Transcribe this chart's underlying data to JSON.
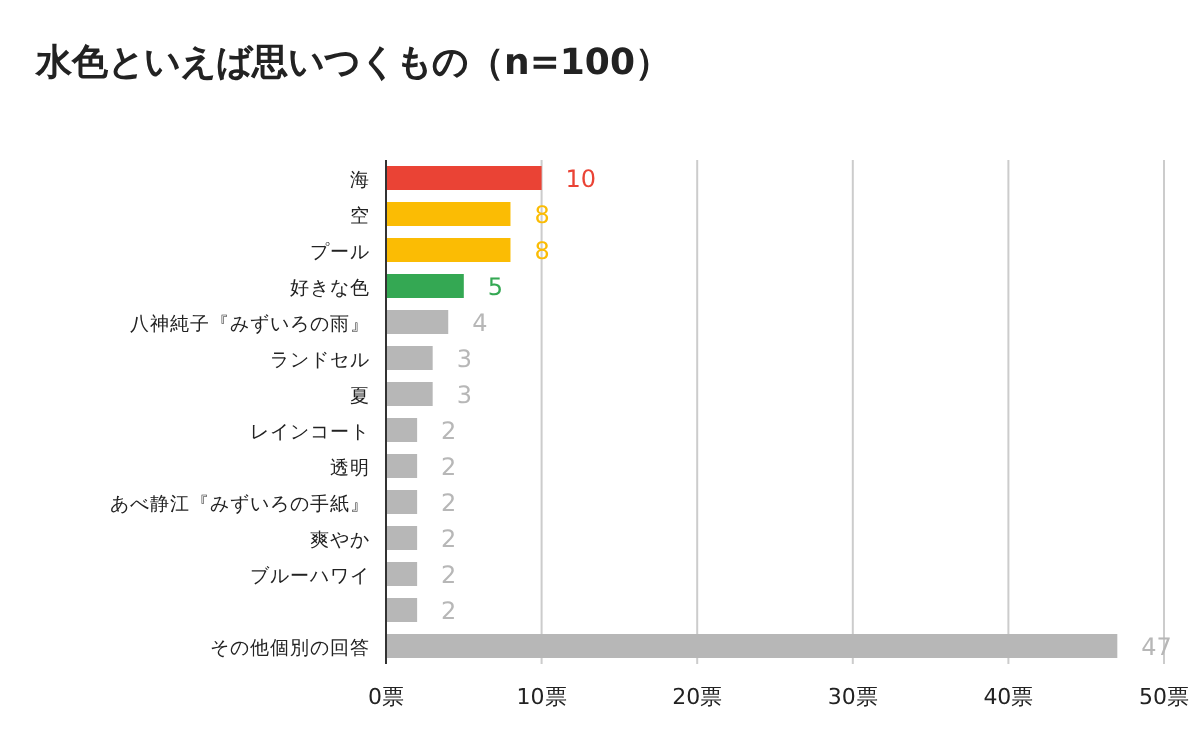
{
  "chart_data": {
    "type": "bar",
    "orientation": "horizontal",
    "title": "水色といえば思いつくもの（n=100）",
    "categories": [
      "海",
      "空",
      "プール",
      "好きな色",
      "八神純子『みずいろの雨』",
      "ランドセル",
      "夏",
      "レインコート",
      "透明",
      "あべ静江『みずいろの手紙』",
      "爽やか",
      "ブルーハワイ",
      null,
      "その他個別の回答"
    ],
    "values": [
      10,
      8,
      8,
      5,
      4,
      3,
      3,
      2,
      2,
      2,
      2,
      2,
      2,
      47
    ],
    "colors": [
      "#ea4335",
      "#fbbc04",
      "#fbbc04",
      "#34a853",
      "#b7b7b7",
      "#b7b7b7",
      "#b7b7b7",
      "#b7b7b7",
      "#b7b7b7",
      "#b7b7b7",
      "#b7b7b7",
      "#b7b7b7",
      "#b7b7b7",
      "#b7b7b7"
    ],
    "xlim": [
      0,
      50
    ],
    "xticks": [
      {
        "value": 0,
        "label": "0票"
      },
      {
        "value": 10,
        "label": "10票"
      },
      {
        "value": 20,
        "label": "20票"
      },
      {
        "value": 30,
        "label": "30票"
      },
      {
        "value": 40,
        "label": "40票"
      },
      {
        "value": 50,
        "label": "50票"
      }
    ],
    "grid": "x",
    "data_labels": true
  }
}
